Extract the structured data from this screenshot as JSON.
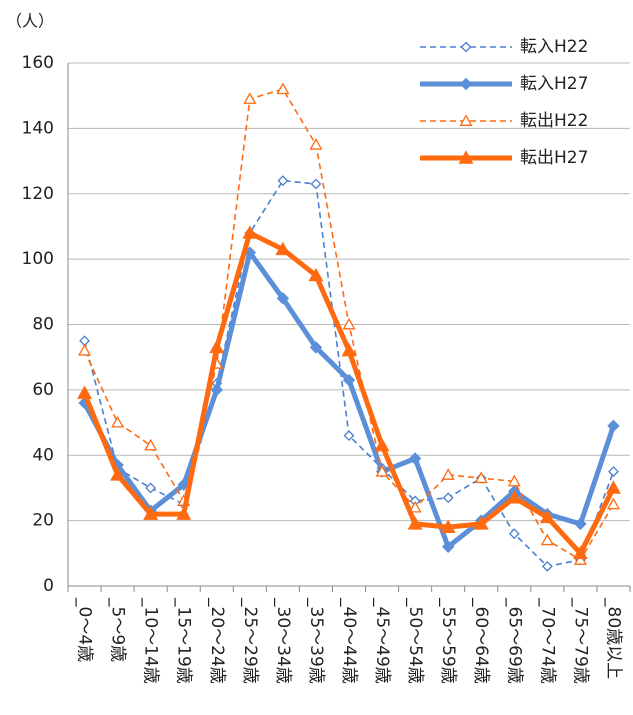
{
  "chart_data": {
    "type": "line",
    "y_unit": "（人）",
    "categories": [
      "_0～4歳",
      "_5～9歳",
      "_10～14歳",
      "_15～19歳",
      "_20～24歳",
      "_25～29歳",
      "_30～34歳",
      "_35～39歳",
      "_40～44歳",
      "_45～49歳",
      "_50～54歳",
      "_55～59歳",
      "_60～64歳",
      "_65～69歳",
      "_70～74歳",
      "_75～79歳",
      "_80歳以上"
    ],
    "series": [
      {
        "name": "転入H22",
        "color": "#4a7fd0",
        "dash": true,
        "marker": "diamond",
        "filled": false,
        "width": 1.6,
        "values": [
          75,
          36,
          30,
          25,
          62,
          108,
          124,
          123,
          46,
          36,
          26,
          27,
          33,
          16,
          6,
          8,
          35
        ]
      },
      {
        "name": "転入H27",
        "color": "#5b8fd8",
        "dash": false,
        "marker": "diamond",
        "filled": true,
        "width": 5,
        "values": [
          56,
          37,
          23,
          31,
          60,
          102,
          88,
          73,
          63,
          35,
          39,
          12,
          20,
          29,
          22,
          19,
          49
        ]
      },
      {
        "name": "転出H22",
        "color": "#ff6a10",
        "dash": true,
        "marker": "triangle",
        "filled": false,
        "width": 1.6,
        "values": [
          72,
          50,
          43,
          26,
          68,
          149,
          152,
          135,
          80,
          35,
          24,
          34,
          33,
          32,
          14,
          8,
          25
        ]
      },
      {
        "name": "転出H27",
        "color": "#ff6a10",
        "dash": false,
        "marker": "triangle",
        "filled": true,
        "width": 5,
        "values": [
          59,
          34,
          22,
          22,
          73,
          108,
          103,
          95,
          72,
          43,
          19,
          18,
          19,
          27,
          21,
          10,
          30
        ]
      }
    ],
    "ylim": [
      0,
      160
    ],
    "yticks": [
      0,
      20,
      40,
      60,
      80,
      100,
      120,
      140,
      160
    ],
    "grid": true
  }
}
